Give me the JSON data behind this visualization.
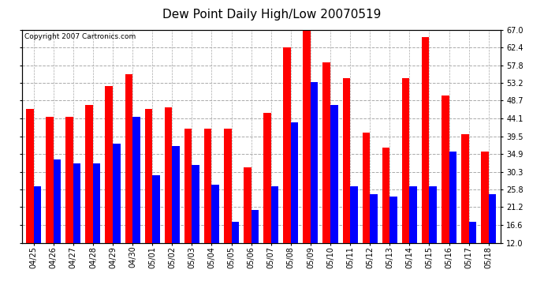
{
  "title": "Dew Point Daily High/Low 20070519",
  "copyright": "Copyright 2007 Cartronics.com",
  "dates": [
    "04/25",
    "04/26",
    "04/27",
    "04/28",
    "04/29",
    "04/30",
    "05/01",
    "05/02",
    "05/03",
    "05/04",
    "05/05",
    "05/06",
    "05/07",
    "05/08",
    "05/09",
    "05/10",
    "05/11",
    "05/12",
    "05/13",
    "05/14",
    "05/15",
    "05/16",
    "05/17",
    "05/18"
  ],
  "highs": [
    46.5,
    44.5,
    44.5,
    47.5,
    52.5,
    55.5,
    46.5,
    47.0,
    41.5,
    41.5,
    41.5,
    31.5,
    45.5,
    62.5,
    67.0,
    58.5,
    54.5,
    40.5,
    36.5,
    54.5,
    65.0,
    50.0,
    40.0,
    35.5
  ],
  "lows": [
    26.5,
    33.5,
    32.5,
    32.5,
    37.5,
    44.5,
    29.5,
    37.0,
    32.0,
    27.0,
    17.5,
    20.5,
    26.5,
    43.0,
    53.5,
    47.5,
    26.5,
    24.5,
    24.0,
    26.5,
    26.5,
    35.5,
    17.5,
    24.5
  ],
  "high_color": "#ff0000",
  "low_color": "#0000ff",
  "background_color": "#ffffff",
  "plot_bg_color": "#ffffff",
  "grid_color": "#aaaaaa",
  "ylim_min": 12.0,
  "ylim_max": 67.0,
  "yticks": [
    12.0,
    16.6,
    21.2,
    25.8,
    30.3,
    34.9,
    39.5,
    44.1,
    48.7,
    53.2,
    57.8,
    62.4,
    67.0
  ],
  "title_fontsize": 11,
  "copyright_fontsize": 6.5,
  "tick_fontsize": 7
}
